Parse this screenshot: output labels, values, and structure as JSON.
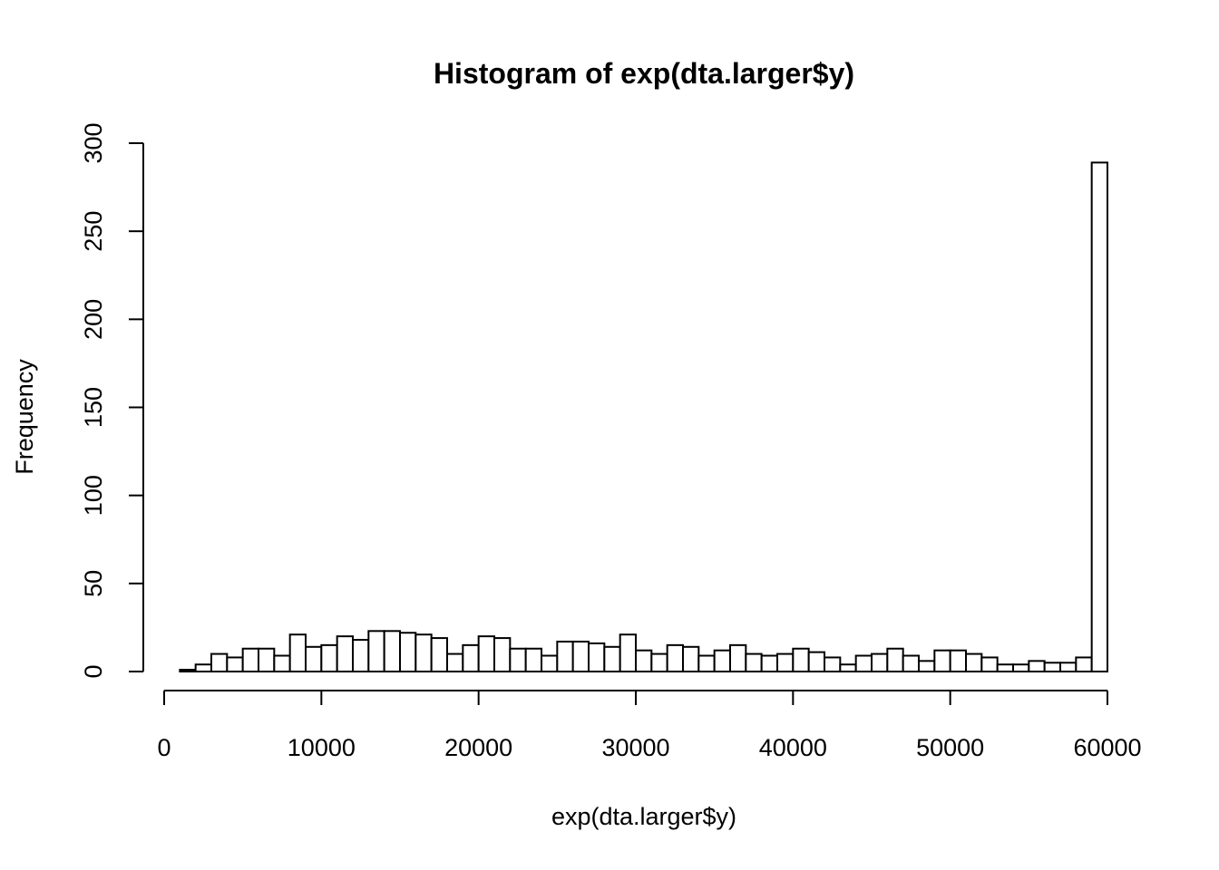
{
  "chart_data": {
    "type": "bar",
    "title": "Histogram of exp(dta.larger$y)",
    "xlabel": "exp(dta.larger$y)",
    "ylabel": "Frequency",
    "xlim": [
      0,
      60000
    ],
    "ylim": [
      0,
      300
    ],
    "x_ticks": [
      0,
      10000,
      20000,
      30000,
      40000,
      50000,
      60000
    ],
    "y_ticks": [
      0,
      50,
      100,
      150,
      200,
      250,
      300
    ],
    "x_tick_labels": [
      "0",
      "10000",
      "20000",
      "30000",
      "40000",
      "50000",
      "60000"
    ],
    "y_tick_labels": [
      "0",
      "50",
      "100",
      "150",
      "200",
      "250",
      "300"
    ],
    "bin_start": 1000,
    "bin_width": 1000,
    "values": [
      1,
      4,
      10,
      8,
      13,
      13,
      9,
      21,
      14,
      15,
      20,
      18,
      23,
      23,
      22,
      21,
      19,
      10,
      15,
      20,
      19,
      13,
      13,
      9,
      17,
      17,
      16,
      14,
      21,
      12,
      10,
      15,
      14,
      9,
      12,
      15,
      10,
      9,
      10,
      13,
      11,
      8,
      4,
      9,
      10,
      13,
      9,
      6,
      12,
      12,
      10,
      8,
      4,
      4,
      6,
      5,
      5,
      8,
      289
    ],
    "bar_fill": "#ffffff",
    "bar_stroke": "#000000",
    "grid": false
  }
}
